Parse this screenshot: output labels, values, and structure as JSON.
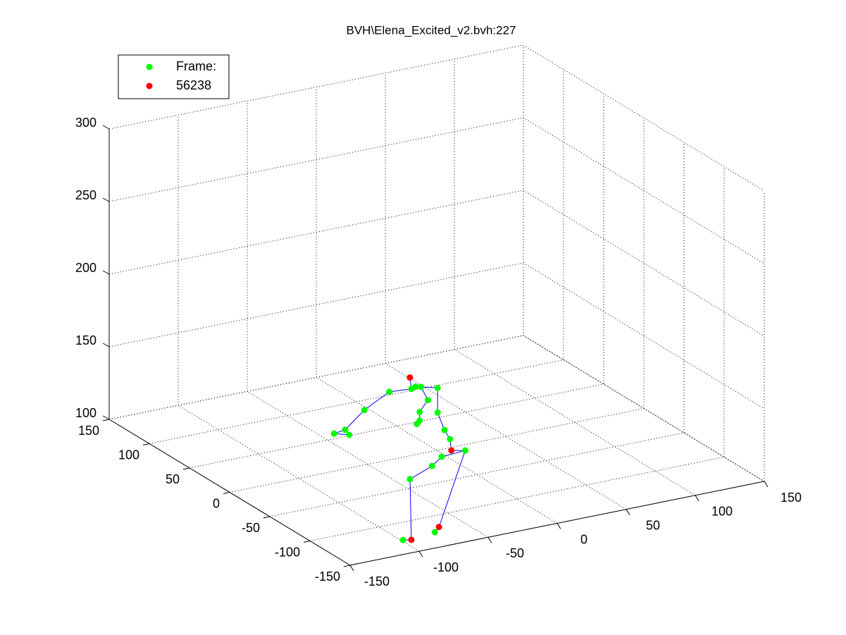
{
  "chart_data": {
    "type": "scatter3d",
    "title": "BVH\\Elena_Excited_v2.bvh:227",
    "xlim": [
      -150,
      150
    ],
    "ylim": [
      -150,
      150
    ],
    "zlim": [
      100,
      300
    ],
    "xticks": [
      -150,
      -100,
      -50,
      0,
      50,
      100,
      150
    ],
    "yticks": [
      -150,
      -100,
      -50,
      0,
      50,
      100,
      150
    ],
    "zticks": [
      100,
      150,
      200,
      250,
      300
    ],
    "grid": true,
    "legend": "upper left",
    "series": [
      {
        "name": "Frame:",
        "color": "#00ff00",
        "x": [
          -110,
          -94,
          -91,
          -87,
          -75,
          -82,
          -88,
          -88,
          -90,
          -75,
          -70,
          -66,
          -55,
          -72,
          -79,
          -95,
          -128,
          -142,
          -150,
          -139,
          -100,
          -77
        ],
        "y": [
          -130,
          -130,
          -130,
          -130,
          -130,
          -130,
          -130,
          -130,
          -130,
          -130,
          -130,
          -130,
          -130,
          -130,
          -130,
          -130,
          -130,
          -130,
          -130,
          -130,
          -130,
          -130
        ],
        "z": [
          205,
          204,
          205,
          204,
          201,
          194,
          187,
          181,
          179,
          184,
          171,
          164,
          154,
          153,
          148,
          142,
          196,
          185,
          184,
          181,
          101,
          102
        ]
      },
      {
        "name": "56238",
        "color": "#ff0000",
        "x": [
          -95,
          -65,
          -94,
          -74
        ],
        "y": [
          -130,
          -130,
          -130,
          -130
        ],
        "z": [
          212,
          156,
          100,
          105
        ]
      }
    ],
    "skeleton": {
      "color": "#0000ff",
      "x": [
        -95,
        -94,
        -91,
        -87,
        -75,
        null,
        -94,
        -110,
        -128,
        -142,
        -150,
        -139,
        null,
        -75,
        -75,
        -70,
        -66,
        -65,
        null,
        -87,
        -82,
        -88,
        -88,
        -90,
        null,
        -65,
        -55,
        -72,
        -79,
        -95,
        -94,
        -100,
        null,
        -55,
        -74,
        -77
      ],
      "y": [
        -130,
        -130,
        -130,
        -130,
        -130,
        null,
        -130,
        -130,
        -130,
        -130,
        -130,
        -130,
        null,
        -130,
        -130,
        -130,
        -130,
        -130,
        null,
        -130,
        -130,
        -130,
        -130,
        -130,
        null,
        -130,
        -130,
        -130,
        -130,
        -130,
        -130,
        -130,
        null,
        -130,
        -130,
        -130
      ],
      "z": [
        212,
        204,
        205,
        204,
        201,
        null,
        204,
        205,
        196,
        185,
        184,
        181,
        null,
        201,
        184,
        171,
        164,
        156,
        null,
        204,
        194,
        187,
        181,
        179,
        null,
        156,
        154,
        153,
        148,
        142,
        100,
        101,
        null,
        154,
        105,
        102
      ]
    }
  }
}
